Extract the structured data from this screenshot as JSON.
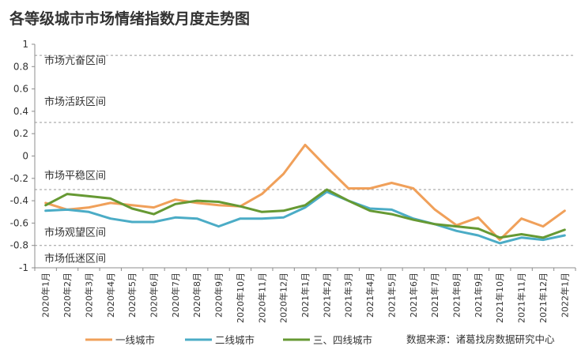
{
  "chart_data": {
    "type": "line",
    "title": "各等级城市市场情绪指数月度走势图",
    "xlabel": "",
    "ylabel": "",
    "ylim": [
      -1,
      1
    ],
    "yticks": [
      1,
      0.8,
      0.6,
      0.4,
      0.2,
      0,
      -0.2,
      -0.4,
      -0.6,
      -0.8,
      -1
    ],
    "grid": "dashed horizontal lines at zone boundaries (0.9, 0.3, -0.3, -0.8)",
    "legend_position": "bottom-left",
    "categories": [
      "2020年1月",
      "2020年2月",
      "2020年3月",
      "2020年4月",
      "2020年5月",
      "2020年6月",
      "2020年7月",
      "2020年8月",
      "2020年9月",
      "2020年10月",
      "2020年11月",
      "2020年12月",
      "2021年1月",
      "2021年2月",
      "2021年3月",
      "2021年4月",
      "2021年5月",
      "2021年6月",
      "2021年7月",
      "2021年8月",
      "2021年9月",
      "2021年10月",
      "2021年11月",
      "2021年12月",
      "2022年1月"
    ],
    "series": [
      {
        "name": "一线城市",
        "color": "#F0A05A",
        "values": [
          -0.42,
          -0.48,
          -0.46,
          -0.42,
          -0.44,
          -0.46,
          -0.39,
          -0.42,
          -0.44,
          -0.45,
          -0.34,
          -0.16,
          0.1,
          -0.1,
          -0.29,
          -0.29,
          -0.24,
          -0.29,
          -0.48,
          -0.62,
          -0.55,
          -0.75,
          -0.56,
          -0.63,
          -0.49
        ]
      },
      {
        "name": "二线城市",
        "color": "#4BACC6",
        "values": [
          -0.49,
          -0.48,
          -0.5,
          -0.56,
          -0.59,
          -0.59,
          -0.55,
          -0.56,
          -0.63,
          -0.56,
          -0.56,
          -0.55,
          -0.46,
          -0.32,
          -0.4,
          -0.47,
          -0.48,
          -0.56,
          -0.61,
          -0.67,
          -0.71,
          -0.78,
          -0.73,
          -0.75,
          -0.71
        ]
      },
      {
        "name": "三、四线城市",
        "color": "#669933",
        "values": [
          -0.44,
          -0.34,
          -0.36,
          -0.38,
          -0.47,
          -0.52,
          -0.43,
          -0.4,
          -0.41,
          -0.45,
          -0.5,
          -0.49,
          -0.44,
          -0.3,
          -0.4,
          -0.49,
          -0.52,
          -0.57,
          -0.61,
          -0.63,
          -0.65,
          -0.73,
          -0.7,
          -0.73,
          -0.66
        ]
      }
    ],
    "zones": [
      {
        "label": "市场亢奋区间"
      },
      {
        "label": "市场活跃区间"
      },
      {
        "label": "市场平稳区间"
      },
      {
        "label": "市场观望区间"
      },
      {
        "label": "市场低迷区间"
      }
    ],
    "zone_boundaries": [
      0.9,
      0.3,
      -0.3,
      -0.8
    ],
    "zone_label_values": [
      0.86,
      0.49,
      -0.17,
      -0.68,
      -0.91
    ],
    "source": "数据来源：诸葛找房数据研究中心"
  }
}
